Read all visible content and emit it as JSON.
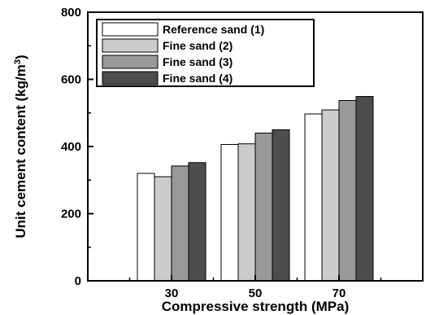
{
  "chart_data": {
    "type": "bar",
    "categories": [
      "30",
      "50",
      "70"
    ],
    "series": [
      {
        "name": "Reference sand (1)",
        "values": [
          320,
          406,
          497
        ],
        "color": "#ffffff"
      },
      {
        "name": "Fine sand (2)",
        "values": [
          310,
          408,
          509
        ],
        "color": "#cccccc"
      },
      {
        "name": "Fine sand (3)",
        "values": [
          342,
          440,
          537
        ],
        "color": "#999999"
      },
      {
        "name": "Fine sand (4)",
        "values": [
          352,
          450,
          549
        ],
        "color": "#4d4d4d"
      }
    ],
    "xlabel": "Compressive strength (MPa)",
    "ylabel": "Unit cement content (kg/m³)",
    "ylabel_main": "Unit cement content (kg/m",
    "ylabel_sup": "3",
    "ylabel_close": ")",
    "ylim": [
      0,
      800
    ],
    "yticks": [
      0,
      200,
      400,
      600,
      800
    ],
    "xlim": [
      10,
      90
    ],
    "grid": false,
    "legend_position": "top-left"
  }
}
